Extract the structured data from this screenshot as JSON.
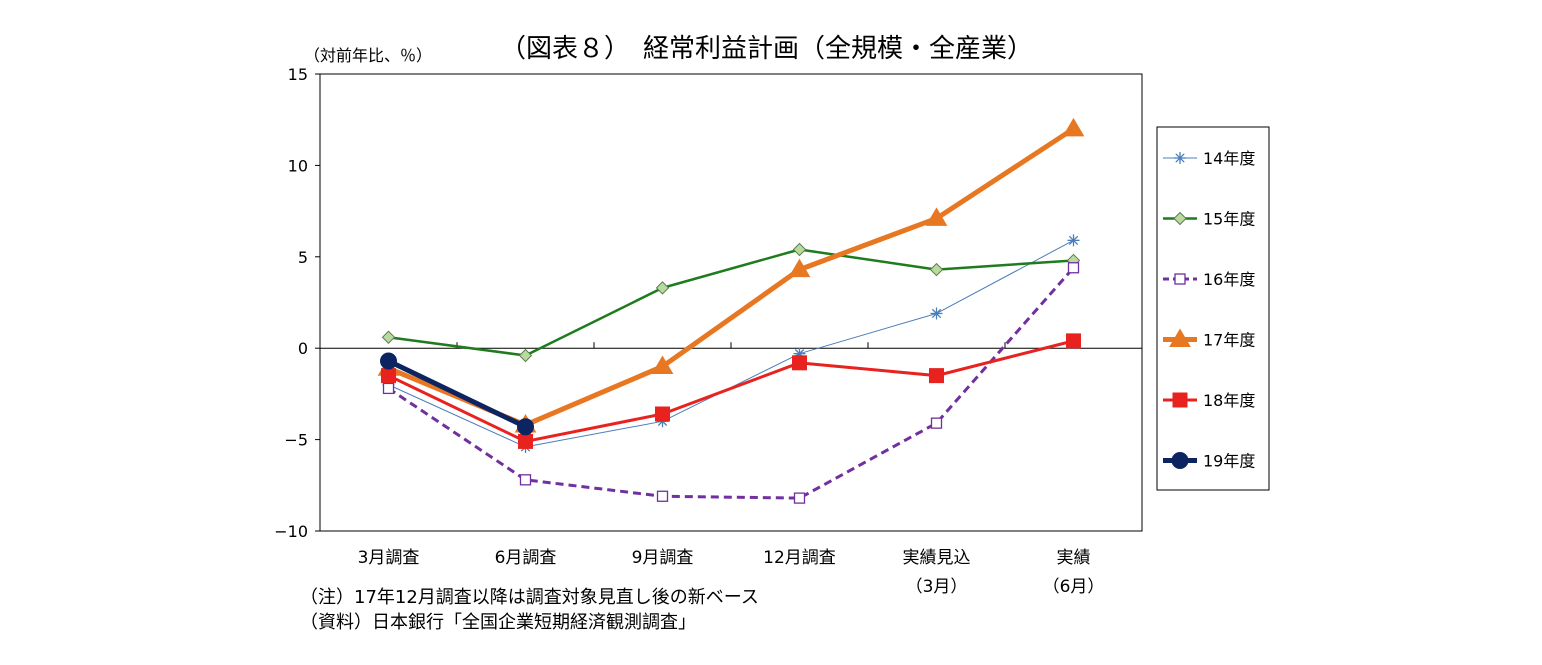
{
  "chart_data": {
    "type": "line",
    "title": "（図表８）　経常利益計画（全規模・全産業）",
    "ylabel": "（対前年比、％）",
    "ylim": [
      -10,
      15
    ],
    "yticks": [
      -10,
      -5,
      0,
      5,
      10,
      15
    ],
    "ytick_labels": [
      "−10",
      "−5",
      "0",
      "5",
      "10",
      "15"
    ],
    "categories": [
      "3月調査",
      "6月調査",
      "9月調査",
      "12月調査",
      "実績見込",
      "実績"
    ],
    "category_sublabels": [
      "",
      "",
      "",
      "",
      "（3月）",
      "（6月）"
    ],
    "legend_position": "right",
    "series": [
      {
        "name": "14年度",
        "color": "#4A7EBB",
        "marker": "star",
        "dash": false,
        "values": [
          -2.0,
          -5.4,
          -4.0,
          -0.3,
          1.9,
          5.9
        ]
      },
      {
        "name": "15年度",
        "color": "#1E7B1E",
        "marker": "diamond",
        "dash": false,
        "values": [
          0.6,
          -0.4,
          3.3,
          5.4,
          4.3,
          4.8
        ]
      },
      {
        "name": "16年度",
        "color": "#7030A0",
        "marker": "square-open",
        "dash": true,
        "values": [
          -2.2,
          -7.2,
          -8.1,
          -8.2,
          -4.1,
          4.4
        ]
      },
      {
        "name": "17年度",
        "color": "#E87722",
        "marker": "triangle",
        "dash": false,
        "values": [
          -1.1,
          -4.2,
          -1.0,
          4.3,
          7.1,
          12.0
        ]
      },
      {
        "name": "18年度",
        "color": "#E8221E",
        "marker": "square",
        "dash": false,
        "values": [
          -1.5,
          -5.1,
          -3.6,
          -0.8,
          -1.5,
          0.4
        ]
      },
      {
        "name": "19年度",
        "color": "#0C2561",
        "marker": "circle",
        "dash": false,
        "values": [
          -0.7,
          -4.3,
          null,
          null,
          null,
          null
        ]
      }
    ]
  },
  "notes": {
    "note1": "（注）17年12月調査以降は調査対象見直し後の新ベース",
    "note2": "（資料）日本銀行「全国企業短期経済観測調査」"
  }
}
